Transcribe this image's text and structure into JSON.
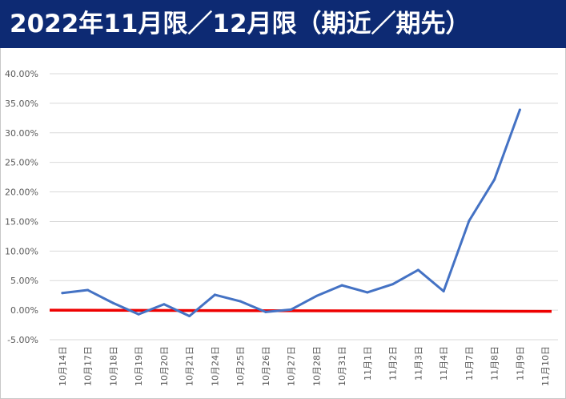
{
  "header": {
    "title": "2022年11月限／12月限（期近／期先）"
  },
  "colors": {
    "title_bg": "#0d2a73",
    "series": "#4472c4",
    "zero_line": "#ee0000",
    "grid": "#d9d9d9"
  },
  "chart_data": {
    "type": "line",
    "title": "2022年11月限／12月限（期近／期先）",
    "xlabel": "",
    "ylabel": "",
    "ylim": [
      -0.05,
      0.4
    ],
    "yticks": [
      -0.05,
      0.0,
      0.05,
      0.1,
      0.15,
      0.2,
      0.25,
      0.3,
      0.35,
      0.4
    ],
    "ytick_labels": [
      "-5.00%",
      "0.00%",
      "5.00%",
      "10.00%",
      "15.00%",
      "20.00%",
      "25.00%",
      "30.00%",
      "35.00%",
      "40.00%"
    ],
    "grid": true,
    "legend": "none",
    "categories": [
      "10月14日",
      "10月17日",
      "10月18日",
      "10月19日",
      "10月20日",
      "10月21日",
      "10月24日",
      "10月25日",
      "10月26日",
      "10月27日",
      "10月28日",
      "10月31日",
      "11月1日",
      "11月2日",
      "11月3日",
      "11月4日",
      "11月7日",
      "11月8日",
      "11月9日",
      "11月10日"
    ],
    "series": [
      {
        "values": [
          0.029,
          0.034,
          0.012,
          -0.007,
          0.01,
          -0.01,
          0.026,
          0.015,
          -0.003,
          0.001,
          0.024,
          0.042,
          0.03,
          0.044,
          0.068,
          0.032,
          0.151,
          0.221,
          0.339,
          null
        ]
      }
    ],
    "reference_lines": [
      {
        "y": 0.0,
        "color": "#ee0000"
      }
    ]
  }
}
